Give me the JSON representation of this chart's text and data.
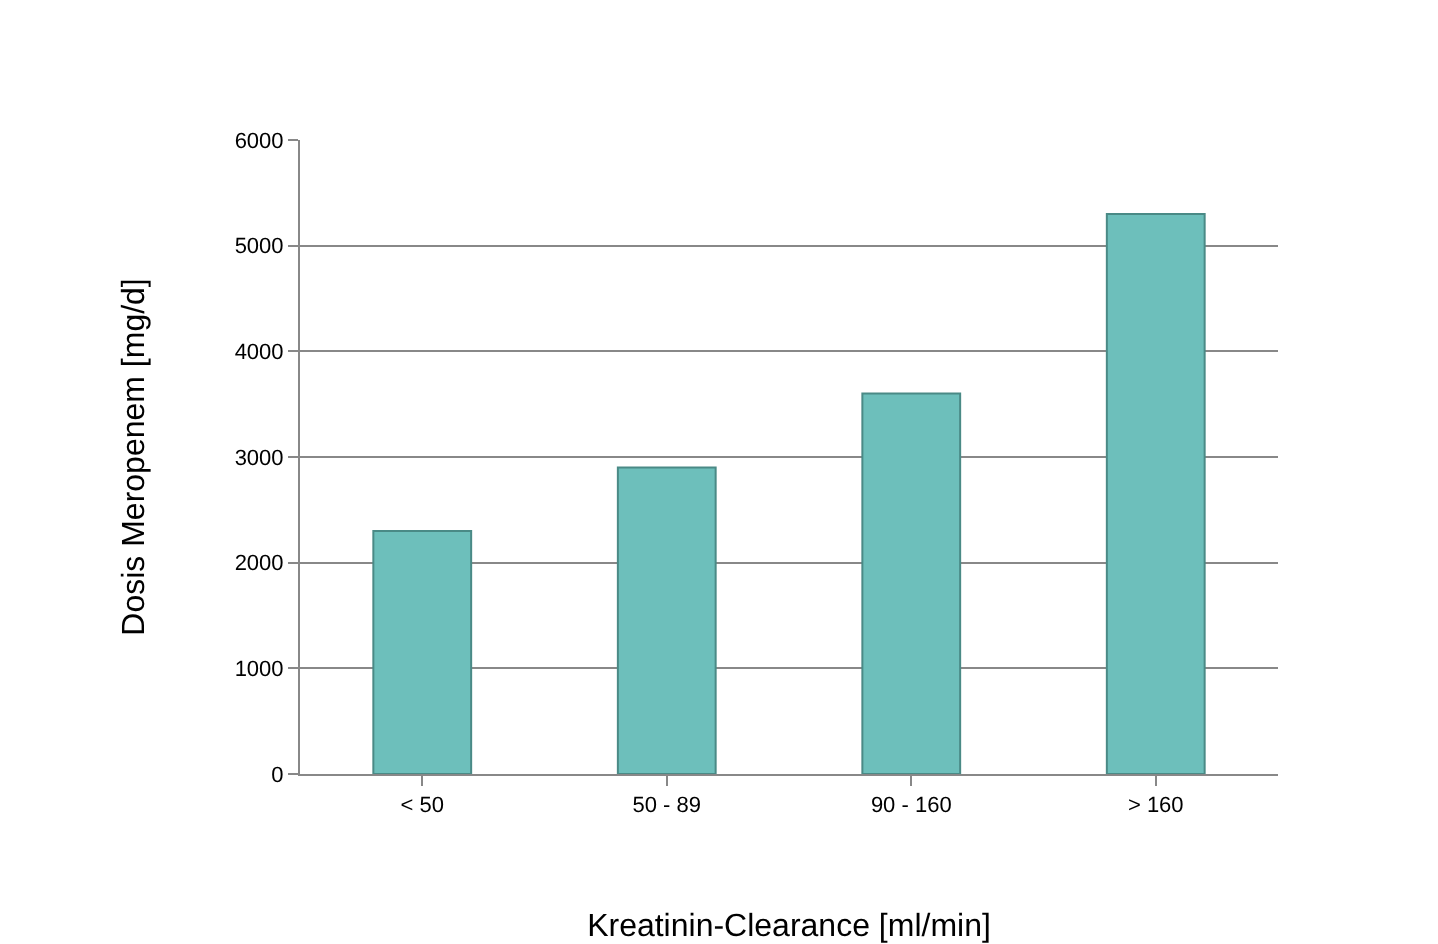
{
  "chart_data": {
    "type": "bar",
    "xlabel": "Kreatinin-Clearance [ml/min]",
    "ylabel": "Dosis Meropenem [mg/d]",
    "categories": [
      "< 50",
      "50 - 89",
      "90 - 160",
      "> 160"
    ],
    "values": [
      2300,
      2900,
      3600,
      5300
    ],
    "color": "#6dbfbb",
    "ylim": [
      0,
      6000
    ],
    "yticks": [
      0,
      1000,
      2000,
      3000,
      4000,
      5000,
      6000
    ],
    "grid": "y"
  }
}
